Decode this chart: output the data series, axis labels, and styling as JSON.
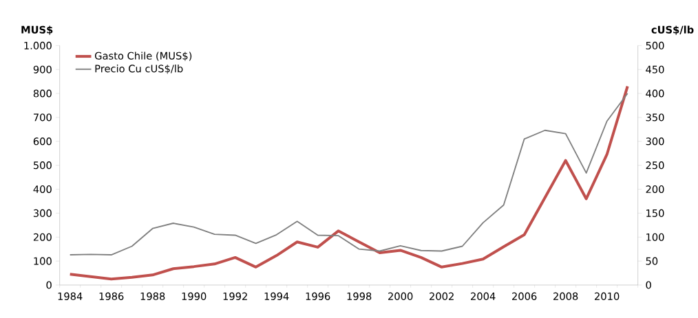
{
  "chart_data": {
    "type": "line",
    "ylabel": "MUS$",
    "y2label": "cUS$/lb",
    "categories": [
      "1984",
      null,
      "1986",
      null,
      "1988",
      null,
      "1990",
      null,
      "1992",
      null,
      "1994",
      null,
      "1996",
      null,
      "1998",
      null,
      "2000",
      null,
      "2002",
      null,
      "2004",
      null,
      "2006",
      null,
      "2008",
      null,
      "2010",
      null
    ],
    "series": [
      {
        "name": "Gasto Chile (MUS$)",
        "color": "#c0504d",
        "values": [
          45,
          35,
          25,
          32,
          42,
          68,
          77,
          88,
          115,
          75,
          123,
          180,
          158,
          226,
          180,
          135,
          145,
          115,
          75,
          90,
          108,
          160,
          210,
          365,
          520,
          360,
          545,
          830
        ]
      },
      {
        "name": "Precio Cu cUS$/lb",
        "color": "#7f7f7f",
        "axis": "y2",
        "values": [
          63,
          64,
          63,
          81,
          118,
          129,
          121,
          106,
          104,
          87,
          105,
          133,
          104,
          103,
          75,
          71,
          82,
          72,
          71,
          81,
          130,
          167,
          305,
          323,
          316,
          234,
          342,
          400
        ]
      }
    ],
    "ylim": [
      0,
      1000
    ],
    "yticks": [
      0,
      100,
      200,
      300,
      400,
      500,
      600,
      700,
      800,
      900,
      {
        "value": 1000,
        "label": "1.000"
      }
    ],
    "y2lim": [
      0,
      500
    ],
    "y2ticks": [
      0,
      50,
      100,
      150,
      200,
      250,
      300,
      350,
      400,
      450,
      500
    ],
    "legend": "top left",
    "grid": false,
    "marker": "none",
    "line_style": "solid"
  }
}
